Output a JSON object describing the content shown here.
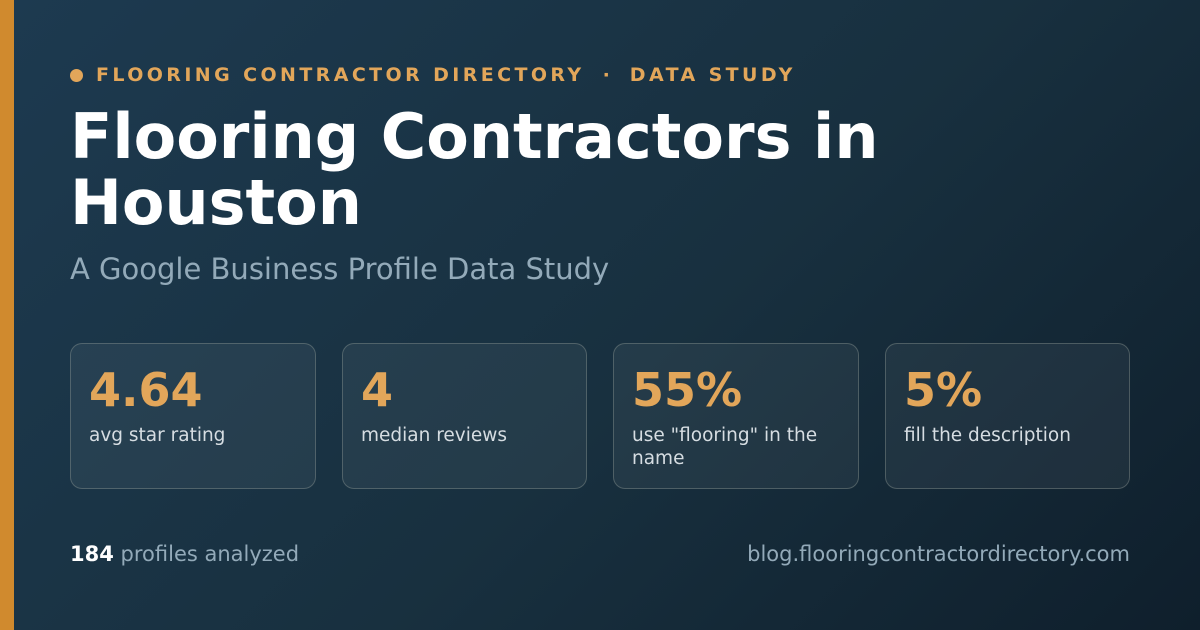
{
  "eyebrow": {
    "left": "FLOORING CONTRACTOR DIRECTORY",
    "separator": "·",
    "right": "DATA STUDY"
  },
  "title": "Flooring Contractors in Houston",
  "subtitle": "A Google Business Profile Data Study",
  "stats": [
    {
      "value": "4.64",
      "label": "avg star rating"
    },
    {
      "value": "4",
      "label": "median reviews"
    },
    {
      "value": "55%",
      "label": "use \"flooring\" in the name"
    },
    {
      "value": "5%",
      "label": "fill the description"
    }
  ],
  "footer": {
    "count": "184",
    "count_label": "profiles analyzed",
    "url": "blog.flooringcontractordirectory.com"
  },
  "colors": {
    "accent": "#d08a2e",
    "highlight": "#e2a65a",
    "background_start": "#1d3a50",
    "background_end": "#0f1f2c",
    "muted_text": "#93aab9"
  }
}
